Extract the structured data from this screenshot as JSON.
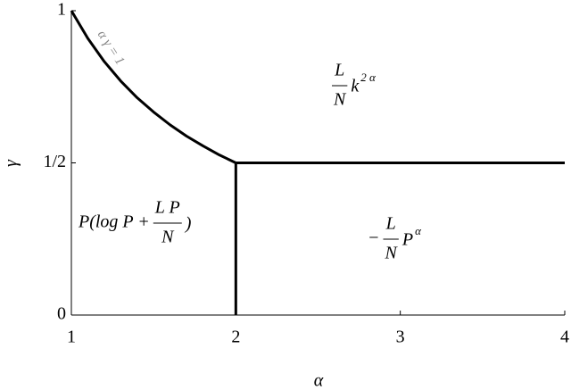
{
  "chart_data": {
    "type": "line",
    "x_label": "α",
    "y_label": "γ",
    "xlim": [
      1,
      4
    ],
    "ylim": [
      0,
      1
    ],
    "xticks": [
      1,
      2,
      3,
      4
    ],
    "yticks": [
      0,
      {
        "value": 0.5,
        "label": "1/2"
      },
      1
    ],
    "series": [
      {
        "color": "#000000",
        "x": [
          1,
          1.1,
          1.2,
          1.3,
          1.4,
          1.5,
          1.6,
          1.7,
          1.8,
          1.9,
          2
        ],
        "values": [
          1,
          0.909,
          0.833,
          0.769,
          0.714,
          0.667,
          0.625,
          0.588,
          0.556,
          0.526,
          0.5
        ]
      },
      {
        "color": "#000000",
        "x": [
          2,
          4
        ],
        "values": [
          0.5,
          0.5
        ]
      },
      {
        "color": "#000000",
        "x": [
          2,
          2
        ],
        "values": [
          0,
          0.5
        ]
      }
    ],
    "curve_label": "α γ = 1",
    "annotations": [
      {
        "numerator": "L",
        "denominator": "N",
        "after": "k",
        "exponent": "2 α"
      },
      {
        "before": "P(log P +",
        "numerator": "L P",
        "denominator": "N",
        "after": ")"
      },
      {
        "before": "−",
        "numerator": "L",
        "denominator": "N",
        "after": "P",
        "exponent": "α"
      }
    ]
  }
}
